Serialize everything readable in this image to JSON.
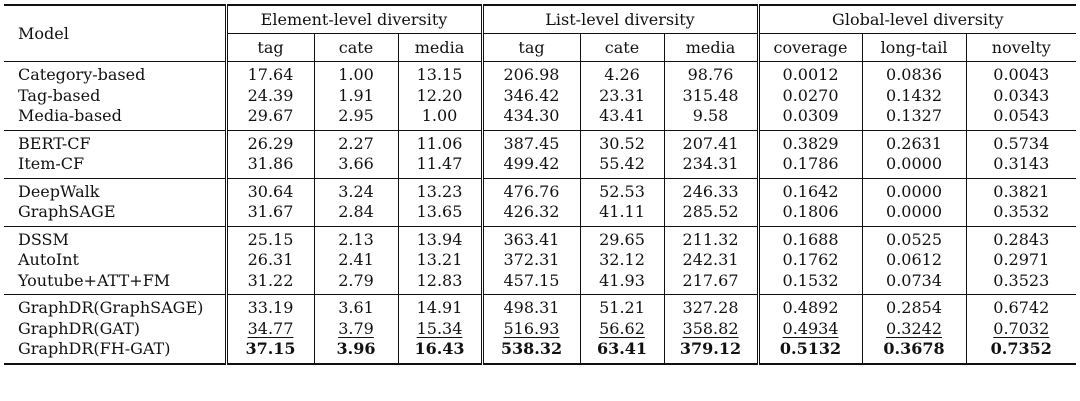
{
  "header": {
    "model": "Model",
    "groups": [
      "Element-level diversity",
      "List-level diversity",
      "Global-level diversity"
    ],
    "subcols": [
      "tag",
      "cate",
      "media",
      "tag",
      "cate",
      "media",
      "coverage",
      "long-tail",
      "novelty"
    ]
  },
  "rows": [
    {
      "model": "Category-based",
      "values": [
        "17.64",
        "1.00",
        "13.15",
        "206.98",
        "4.26",
        "98.76",
        "0.0012",
        "0.0836",
        "0.0043"
      ]
    },
    {
      "model": "Tag-based",
      "values": [
        "24.39",
        "1.91",
        "12.20",
        "346.42",
        "23.31",
        "315.48",
        "0.0270",
        "0.1432",
        "0.0343"
      ]
    },
    {
      "model": "Media-based",
      "values": [
        "29.67",
        "2.95",
        "1.00",
        "434.30",
        "43.41",
        "9.58",
        "0.0309",
        "0.1327",
        "0.0543"
      ]
    },
    {
      "model": "BERT-CF",
      "values": [
        "26.29",
        "2.27",
        "11.06",
        "387.45",
        "30.52",
        "207.41",
        "0.3829",
        "0.2631",
        "0.5734"
      ]
    },
    {
      "model": "Item-CF",
      "values": [
        "31.86",
        "3.66",
        "11.47",
        "499.42",
        "55.42",
        "234.31",
        "0.1786",
        "0.0000",
        "0.3143"
      ]
    },
    {
      "model": "DeepWalk",
      "values": [
        "30.64",
        "3.24",
        "13.23",
        "476.76",
        "52.53",
        "246.33",
        "0.1642",
        "0.0000",
        "0.3821"
      ]
    },
    {
      "model": "GraphSAGE",
      "values": [
        "31.67",
        "2.84",
        "13.65",
        "426.32",
        "41.11",
        "285.52",
        "0.1806",
        "0.0000",
        "0.3532"
      ]
    },
    {
      "model": "DSSM",
      "values": [
        "25.15",
        "2.13",
        "13.94",
        "363.41",
        "29.65",
        "211.32",
        "0.1688",
        "0.0525",
        "0.2843"
      ]
    },
    {
      "model": "AutoInt",
      "values": [
        "26.31",
        "2.41",
        "13.21",
        "372.31",
        "32.12",
        "242.31",
        "0.1762",
        "0.0612",
        "0.2971"
      ]
    },
    {
      "model": "Youtube+ATT+FM",
      "values": [
        "31.22",
        "2.79",
        "12.83",
        "457.15",
        "41.93",
        "217.67",
        "0.1532",
        "0.0734",
        "0.3523"
      ]
    },
    {
      "model": "GraphDR(GraphSAGE)",
      "values": [
        "33.19",
        "3.61",
        "14.91",
        "498.31",
        "51.21",
        "327.28",
        "0.4892",
        "0.2854",
        "0.6742"
      ]
    },
    {
      "model": "GraphDR(GAT)",
      "values": [
        "34.77",
        "3.79",
        "15.34",
        "516.93",
        "56.62",
        "358.82",
        "0.4934",
        "0.3242",
        "0.7032"
      ]
    },
    {
      "model": "GraphDR(FH-GAT)",
      "values": [
        "37.15",
        "3.96",
        "16.43",
        "538.32",
        "63.41",
        "379.12",
        "0.5132",
        "0.3678",
        "0.7352"
      ]
    }
  ]
}
